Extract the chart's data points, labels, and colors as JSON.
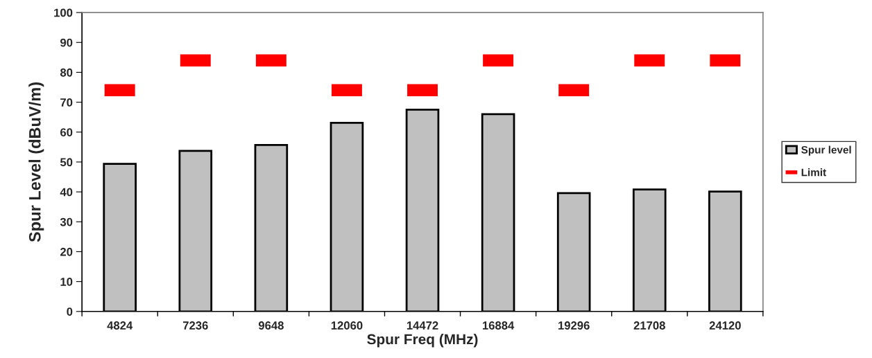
{
  "chart_data": {
    "type": "bar",
    "xlabel": "Spur Freq (MHz)",
    "ylabel": "Spur Level (dBuV/m)",
    "categories": [
      "4824",
      "7236",
      "9648",
      "12060",
      "14472",
      "16884",
      "19296",
      "21708",
      "24120"
    ],
    "series": [
      {
        "name": "Spur level",
        "color": "#c0c0c0",
        "values": [
          49.4,
          53.7,
          55.7,
          63.1,
          67.5,
          66.0,
          39.6,
          40.8,
          40.1
        ]
      },
      {
        "name": "Limit",
        "type": "scatter",
        "color": "#ff0000",
        "values": [
          74,
          84,
          84,
          74,
          74,
          84,
          74,
          84,
          84
        ]
      }
    ],
    "ylim": [
      0,
      100
    ],
    "yticks": [
      0,
      10,
      20,
      30,
      40,
      50,
      60,
      70,
      80,
      90,
      100
    ],
    "grid": false,
    "legend": "right"
  }
}
